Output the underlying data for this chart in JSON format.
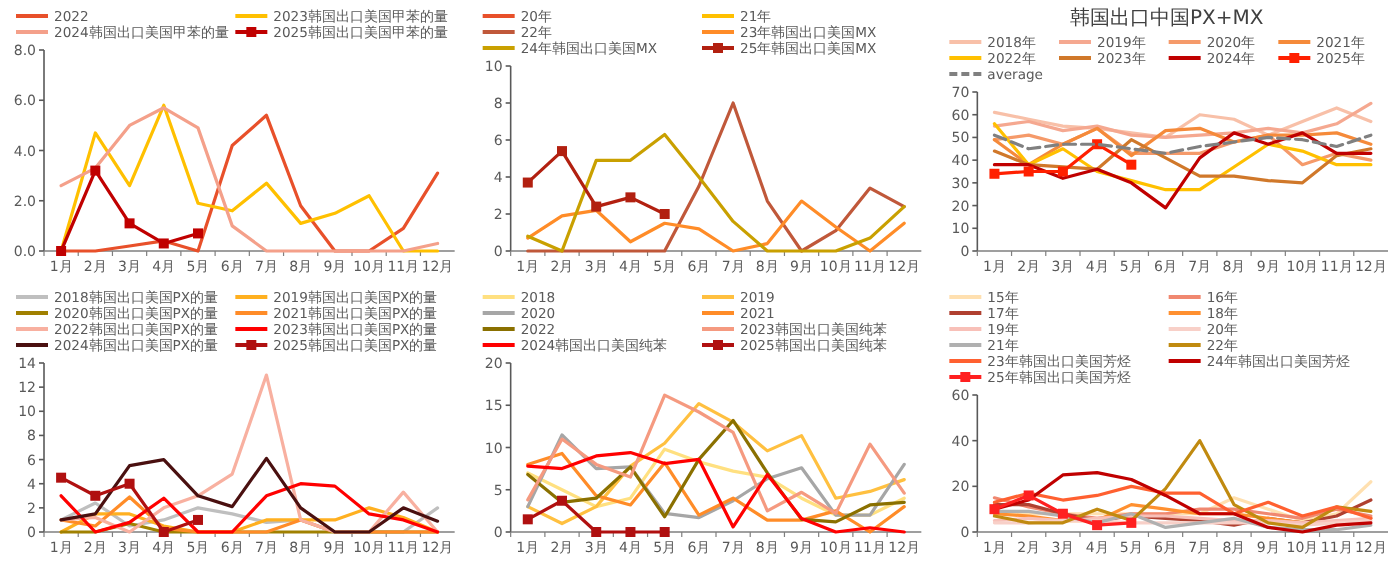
{
  "chart_data": [
    {
      "type": "line",
      "categories": [
        "1月",
        "2月",
        "3月",
        "4月",
        "5月",
        "6月",
        "7月",
        "8月",
        "9月",
        "10月",
        "11月",
        "12月"
      ],
      "ylim": [
        0,
        8
      ],
      "yticks": [
        {
          "value": 0,
          "label": "0.0"
        },
        {
          "value": 2,
          "label": "2.0"
        },
        {
          "value": 4,
          "label": "4.0"
        },
        {
          "value": 6,
          "label": "6.0"
        },
        {
          "value": 8,
          "label": "8.0"
        }
      ],
      "legend": "top",
      "marker": "none",
      "series": [
        {
          "name": "2022",
          "color": "#e8502a",
          "values": [
            0,
            0,
            0.2,
            0.4,
            0,
            4.2,
            5.4,
            1.8,
            0,
            0,
            0.9,
            3.1
          ]
        },
        {
          "name": "2023韩国出口美国甲苯的量",
          "color": "#ffc000",
          "values": [
            0,
            4.7,
            2.6,
            5.8,
            1.9,
            1.6,
            2.7,
            1.1,
            1.5,
            2.2,
            0,
            0
          ]
        },
        {
          "name": "2024韩国出口美国甲苯的量",
          "color": "#f4a08a",
          "values": [
            2.6,
            3.3,
            5.0,
            5.7,
            4.9,
            1.0,
            0,
            0,
            0,
            0,
            0,
            0.3
          ]
        },
        {
          "name": "2025韩国出口美国甲苯的量",
          "color": "#c00000",
          "marker": "square",
          "values": [
            0,
            3.2,
            1.1,
            0.3,
            0.7,
            null,
            null,
            null,
            null,
            null,
            null,
            null
          ]
        }
      ]
    },
    {
      "type": "line",
      "categories": [
        "1月",
        "2月",
        "3月",
        "4月",
        "5月",
        "6月",
        "7月",
        "8月",
        "9月",
        "10月",
        "11月",
        "12月"
      ],
      "ylim": [
        0,
        10
      ],
      "yticks": [
        0,
        2,
        4,
        6,
        8,
        10
      ],
      "legend": "top",
      "marker": "none",
      "series": [
        {
          "name": "20年",
          "color": "#e8502a",
          "values": [
            null,
            null,
            null,
            null,
            null,
            null,
            null,
            null,
            null,
            null,
            null,
            null
          ]
        },
        {
          "name": "21年",
          "color": "#ffc000",
          "values": [
            null,
            null,
            null,
            null,
            null,
            null,
            null,
            null,
            null,
            null,
            null,
            null
          ]
        },
        {
          "name": "22年",
          "color": "#c0583a",
          "values": [
            0,
            0,
            0,
            0,
            0,
            3.5,
            8,
            2.7,
            0,
            1.1,
            3.4,
            2.4
          ]
        },
        {
          "name": "23年韩国出口美国MX",
          "color": "#ff8c28",
          "values": [
            0.7,
            1.9,
            2.2,
            0.5,
            1.5,
            1.2,
            0,
            0.4,
            2.7,
            1.3,
            0,
            1.5
          ]
        },
        {
          "name": "24年韩国出口美国MX",
          "color": "#c9a000",
          "values": [
            0.8,
            0,
            4.9,
            4.9,
            6.3,
            4,
            1.6,
            0,
            0,
            0,
            0.7,
            2.4
          ]
        },
        {
          "name": "25年韩国出口美国MX",
          "color": "#b22010",
          "marker": "square",
          "values": [
            3.7,
            5.4,
            2.4,
            2.9,
            2.0,
            null,
            null,
            null,
            null,
            null,
            null,
            null
          ]
        }
      ]
    },
    {
      "type": "line",
      "title": "韩国出口中国PX+MX",
      "categories": [
        "1月",
        "2月",
        "3月",
        "4月",
        "5月",
        "6月",
        "7月",
        "8月",
        "9月",
        "10月",
        "11月",
        "12月"
      ],
      "ylim": [
        0,
        70
      ],
      "yticks": [
        0,
        10,
        20,
        30,
        40,
        50,
        60,
        70
      ],
      "legend": "top",
      "marker": "none",
      "series": [
        {
          "name": "2018年",
          "color": "#f8c0a8",
          "values": [
            61,
            58,
            55,
            54,
            52,
            50,
            60,
            58,
            51,
            57,
            63,
            57
          ]
        },
        {
          "name": "2019年",
          "color": "#f5a890",
          "values": [
            55,
            57,
            53,
            55,
            51,
            50,
            51,
            52,
            54,
            52,
            56,
            65
          ]
        },
        {
          "name": "2020年",
          "color": "#f59a6a",
          "values": [
            49,
            51,
            47,
            54,
            43,
            43,
            43,
            48,
            51,
            38,
            43,
            40
          ]
        },
        {
          "name": "2021年",
          "color": "#f58a3a",
          "values": [
            49,
            38,
            47,
            54,
            42,
            53,
            54,
            48,
            51,
            51,
            52,
            47
          ]
        },
        {
          "name": "2022年",
          "color": "#ffc000",
          "values": [
            56,
            38,
            45,
            35,
            31,
            27,
            27,
            37,
            47,
            44,
            38,
            38
          ]
        },
        {
          "name": "2023年",
          "color": "#d0782a",
          "values": [
            44,
            38,
            37,
            36,
            49,
            41,
            33,
            33,
            31,
            30,
            42,
            45
          ]
        },
        {
          "name": "2024年",
          "color": "#c00000",
          "values": [
            38,
            38,
            32,
            36,
            30,
            19,
            41,
            52,
            47,
            52,
            43,
            43
          ]
        },
        {
          "name": "2025年",
          "color": "#ff2000",
          "marker": "square",
          "values": [
            34,
            35,
            35,
            47,
            38,
            null,
            null,
            null,
            null,
            null,
            null,
            null
          ]
        },
        {
          "name": "average",
          "color": "#808080",
          "line_style": "dashed",
          "values": [
            51,
            45,
            47,
            47,
            45,
            43,
            46,
            48,
            50,
            49,
            46,
            51
          ]
        }
      ]
    },
    {
      "type": "line",
      "categories": [
        "1月",
        "2月",
        "3月",
        "4月",
        "5月",
        "6月",
        "7月",
        "8月",
        "9月",
        "10月",
        "11月",
        "12月"
      ],
      "ylim": [
        0,
        14
      ],
      "yticks": [
        0,
        2,
        4,
        6,
        8,
        10,
        12,
        14
      ],
      "legend": "top",
      "marker": "none",
      "series": [
        {
          "name": "2018韩国出口美国PX的量",
          "color": "#bfbfbf",
          "values": [
            1,
            2.4,
            0.5,
            1,
            2,
            1.5,
            0.8,
            1,
            0,
            0,
            0,
            2
          ]
        },
        {
          "name": "2019韩国出口美国PX的量",
          "color": "#ffb020",
          "values": [
            0,
            1.5,
            1.5,
            0.5,
            0,
            0,
            1,
            1,
            1,
            2,
            1.2,
            0
          ]
        },
        {
          "name": "2020韩国出口美国PX的量",
          "color": "#a08000",
          "values": [
            0,
            0,
            0.7,
            0,
            0,
            0,
            0,
            0,
            0,
            0,
            0,
            0
          ]
        },
        {
          "name": "2021韩国出口美国PX的量",
          "color": "#ff8c28",
          "values": [
            1,
            0.5,
            2.9,
            0.3,
            0,
            0,
            0,
            1,
            0,
            0,
            0,
            0
          ]
        },
        {
          "name": "2022韩国出口美国PX的量",
          "color": "#f8b0a0",
          "values": [
            1,
            1.2,
            0,
            2,
            3,
            4.8,
            13,
            1,
            0,
            0,
            3.3,
            0
          ]
        },
        {
          "name": "2023韩国出口美国PX的量",
          "color": "#ff0000",
          "values": [
            3,
            0,
            0.8,
            2.8,
            0,
            0,
            3,
            4,
            3.8,
            1.5,
            1,
            0
          ]
        },
        {
          "name": "2024韩国出口美国PX的量",
          "color": "#4a1010",
          "values": [
            1,
            1.5,
            5.5,
            6,
            3,
            2.1,
            6.1,
            2,
            0,
            0,
            2,
            0.9
          ]
        },
        {
          "name": "2025韩国出口美国PX的量",
          "color": "#b01010",
          "marker": "square",
          "values": [
            4.5,
            3,
            4,
            0,
            1,
            null,
            null,
            null,
            null,
            null,
            null,
            null
          ]
        }
      ]
    },
    {
      "type": "line",
      "categories": [
        "1月",
        "2月",
        "3月",
        "4月",
        "5月",
        "6月",
        "7月",
        "8月",
        "9月",
        "10月",
        "11月",
        "12月"
      ],
      "ylim": [
        0,
        20
      ],
      "yticks": [
        0,
        5,
        10,
        15,
        20
      ],
      "legend": "top",
      "marker": "none",
      "series": [
        {
          "name": "2018",
          "color": "#ffe080",
          "values": [
            7,
            5,
            3,
            4,
            9.8,
            8.3,
            7.2,
            6.5,
            4,
            2,
            2,
            4
          ]
        },
        {
          "name": "2019",
          "color": "#ffc040",
          "values": [
            3,
            1,
            3,
            7.8,
            10.5,
            15.2,
            13,
            9.6,
            11.4,
            4,
            4.8,
            6.2
          ]
        },
        {
          "name": "2020",
          "color": "#a6a6a6",
          "values": [
            3,
            11.5,
            7.5,
            7.7,
            2.2,
            1.7,
            3.7,
            6.3,
            7.6,
            2,
            2,
            8
          ]
        },
        {
          "name": "2021",
          "color": "#ff8c28",
          "values": [
            8,
            9.3,
            4.3,
            3.2,
            8.2,
            2,
            4,
            1.4,
            1.4,
            2.5,
            0,
            3
          ]
        },
        {
          "name": "2022",
          "color": "#8a7000",
          "values": [
            6.8,
            3.5,
            4,
            7.7,
            1.8,
            8.6,
            13.2,
            7,
            1.5,
            1.2,
            3.2,
            3.5
          ]
        },
        {
          "name": "2023韩国出口美国纯苯",
          "color": "#f59a80",
          "values": [
            3.8,
            11,
            8,
            6.5,
            16.2,
            14.2,
            11.8,
            2.5,
            4.7,
            2.2,
            10.4,
            4.6
          ]
        },
        {
          "name": "2024韩国出口美国纯苯",
          "color": "#ff0000",
          "values": [
            7.8,
            7.5,
            9,
            9.4,
            8.1,
            8.6,
            0.6,
            6.8,
            1.6,
            0,
            0.5,
            0
          ]
        },
        {
          "name": "2025韩国出口美国纯苯",
          "color": "#b01010",
          "marker": "square",
          "values": [
            1.5,
            3.7,
            0,
            0,
            0,
            null,
            null,
            null,
            null,
            null,
            null,
            null
          ]
        }
      ]
    },
    {
      "type": "line",
      "categories": [
        "1月",
        "2月",
        "3月",
        "4月",
        "5月",
        "6月",
        "7月",
        "8月",
        "9月",
        "10月",
        "11月",
        "12月"
      ],
      "ylim": [
        0,
        60
      ],
      "yticks": [
        0,
        20,
        40,
        60
      ],
      "legend": "top",
      "marker": "none",
      "series": [
        {
          "name": "15年",
          "color": "#ffe0b0",
          "values": [
            8,
            8,
            8,
            8,
            8,
            8,
            8,
            15,
            10,
            5,
            8,
            22
          ]
        },
        {
          "name": "16年",
          "color": "#f08870",
          "values": [
            15,
            11,
            8,
            6,
            8,
            8,
            10,
            10,
            8,
            6,
            10,
            7
          ]
        },
        {
          "name": "17年",
          "color": "#b04030",
          "values": [
            12,
            12,
            8,
            5,
            7,
            6,
            5,
            3,
            6,
            4,
            7,
            14
          ]
        },
        {
          "name": "18年",
          "color": "#ff9030",
          "values": [
            8,
            7,
            5,
            5,
            12,
            10,
            8,
            8,
            6,
            4,
            4,
            6
          ]
        },
        {
          "name": "19年",
          "color": "#f8c0b8",
          "values": [
            5,
            6,
            5,
            6,
            7,
            7,
            6,
            5,
            5,
            4,
            5,
            6
          ]
        },
        {
          "name": "20年",
          "color": "#f8d0c8",
          "values": [
            4,
            4,
            5,
            5,
            4,
            4,
            4,
            4,
            4,
            3,
            4,
            5
          ]
        },
        {
          "name": "21年",
          "color": "#b0b0b0",
          "values": [
            9,
            9,
            7,
            4,
            8,
            2,
            4,
            6,
            2,
            1,
            1,
            3
          ]
        },
        {
          "name": "22年",
          "color": "#c08a10",
          "values": [
            7,
            4,
            4,
            10,
            5,
            19,
            40,
            12,
            4,
            2,
            11,
            9
          ]
        },
        {
          "name": "23年韩国出口美国芳烃",
          "color": "#ff6030",
          "values": [
            13,
            17,
            14,
            16,
            20,
            17,
            17,
            8,
            13,
            7,
            11,
            6
          ]
        },
        {
          "name": "24年韩国出口美国芳烃",
          "color": "#c00000",
          "values": [
            10,
            14,
            25,
            26,
            23,
            16,
            8,
            8,
            2,
            0,
            3,
            4
          ]
        },
        {
          "name": "25年韩国出口美国芳烃",
          "color": "#ff2020",
          "marker": "square",
          "values": [
            10,
            16,
            8,
            3,
            4,
            null,
            null,
            null,
            null,
            null,
            null,
            null
          ]
        }
      ]
    }
  ]
}
